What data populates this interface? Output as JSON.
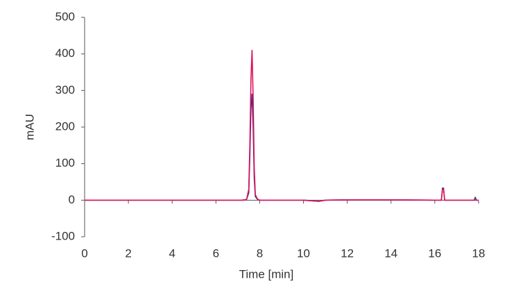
{
  "chart_data": {
    "type": "line",
    "xlabel": "Time [min]",
    "ylabel": "mAU",
    "x": [
      0,
      2,
      4,
      6,
      7.2,
      7.4,
      7.5,
      7.55,
      7.6,
      7.65,
      7.7,
      7.75,
      7.8,
      7.9,
      8.0,
      8.5,
      10,
      10.7,
      11,
      12,
      14,
      16,
      16.3,
      16.35,
      16.4,
      16.45,
      16.5,
      17.8,
      17.85,
      17.9,
      18
    ],
    "series": [
      {
        "color": "#2b3a8a",
        "values": [
          0,
          0,
          0,
          0,
          0,
          2,
          20,
          120,
          250,
          290,
          200,
          60,
          10,
          2,
          0,
          0,
          0,
          -3,
          0,
          1,
          1,
          0,
          0,
          33,
          33,
          0,
          0,
          0,
          8,
          0,
          0
        ]
      },
      {
        "color": "#e0105a",
        "values": [
          0,
          0,
          0,
          0,
          0,
          2,
          30,
          150,
          330,
          410,
          280,
          90,
          15,
          3,
          0,
          0,
          0,
          -3,
          0,
          1,
          1,
          0,
          0,
          30,
          30,
          0,
          0,
          0,
          0,
          0,
          0
        ]
      }
    ],
    "xlim": [
      0,
      18
    ],
    "xticks": [
      0,
      2,
      4,
      6,
      8,
      10,
      12,
      14,
      16,
      18
    ],
    "ylim": [
      -100,
      500
    ],
    "yticks": [
      -100,
      0,
      100,
      200,
      300,
      400,
      500
    ],
    "grid": false
  }
}
